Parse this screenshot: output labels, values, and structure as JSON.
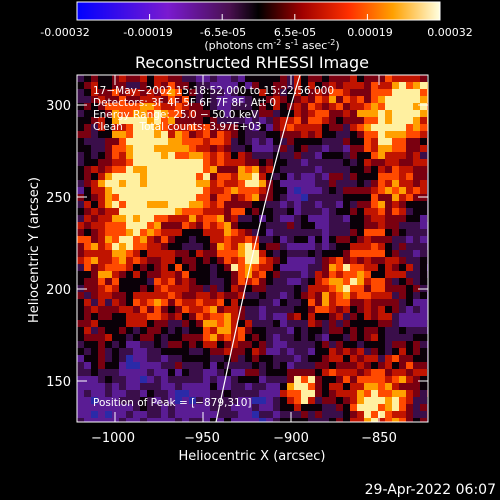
{
  "colorbar": {
    "ticks": [
      "-0.00032",
      "-0.00019",
      "-6.5e-05",
      "6.5e-05",
      "0.00019",
      "0.00032"
    ],
    "unit_parts": [
      "(photons cm",
      "-2",
      " s",
      "-1",
      " asec",
      "-2",
      ")"
    ]
  },
  "plot": {
    "title": "Reconstructed RHESSI Image",
    "xlabel": "Heliocentric X (arcsec)",
    "ylabel": "Heliocentric Y (arcsec)",
    "xticks": [
      "−1000",
      "−950",
      "−900",
      "−850"
    ],
    "yticks": [
      "150",
      "200",
      "250",
      "300"
    ],
    "annotations": [
      "17−May−2002 15:18:52.000 to 15:22:56.000",
      "Detectors: 3F 4F 5F 6F 7F 8F, Att 0",
      "Energy Range: 25.0 − 50.0 keV",
      "Clean     Total counts: 3.97E+03"
    ],
    "peak": "Position of Peak = [−879,310]"
  },
  "footer": {
    "timestamp": "29-Apr-2022 06:07"
  }
}
